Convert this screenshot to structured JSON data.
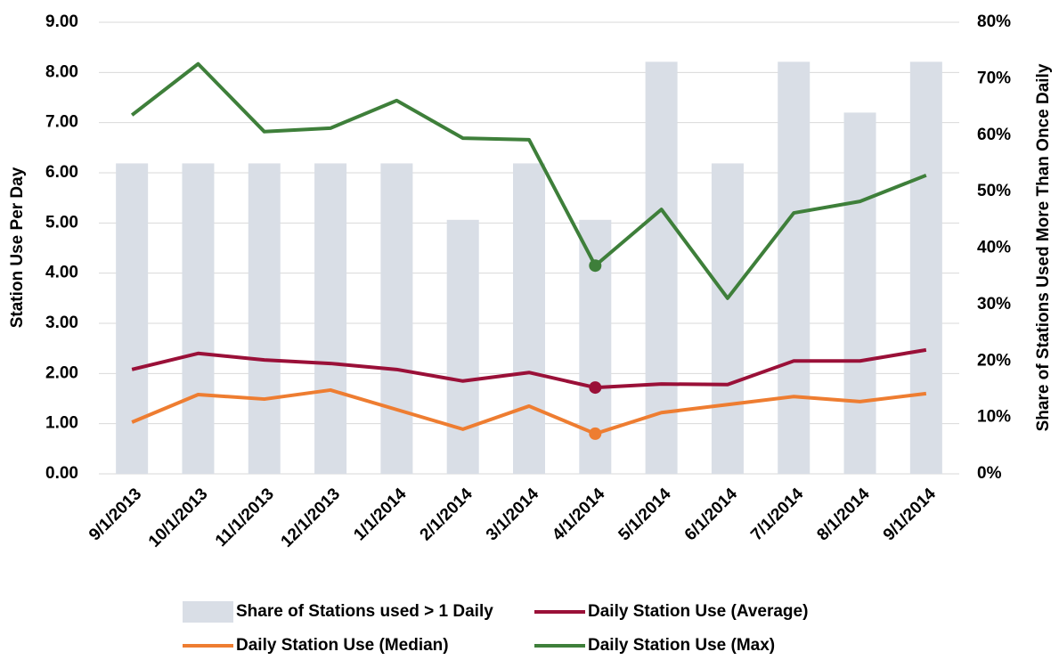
{
  "chart_data": {
    "type": "combo",
    "ylabel": "Station Use Per Day",
    "y2label": "Share of Stations Used More Than Once Daily",
    "categories": [
      "9/1/2013",
      "10/1/2013",
      "11/1/2013",
      "12/1/2013",
      "1/1/2014",
      "2/1/2014",
      "3/1/2014",
      "4/1/2014",
      "5/1/2014",
      "6/1/2014",
      "7/1/2014",
      "8/1/2014",
      "9/1/2014"
    ],
    "ylim": [
      0,
      9
    ],
    "yticks": [
      {
        "value": 0,
        "label": "0.00"
      },
      {
        "value": 1,
        "label": "1.00"
      },
      {
        "value": 2,
        "label": "2.00"
      },
      {
        "value": 3,
        "label": "3.00"
      },
      {
        "value": 4,
        "label": "4.00"
      },
      {
        "value": 5,
        "label": "5.00"
      },
      {
        "value": 6,
        "label": "6.00"
      },
      {
        "value": 7,
        "label": "7.00"
      },
      {
        "value": 8,
        "label": "8.00"
      },
      {
        "value": 9,
        "label": "9.00"
      }
    ],
    "y2lim": [
      0,
      80
    ],
    "y2ticks": [
      {
        "value": 0,
        "label": "0%"
      },
      {
        "value": 10,
        "label": "10%"
      },
      {
        "value": 20,
        "label": "20%"
      },
      {
        "value": 30,
        "label": "30%"
      },
      {
        "value": 40,
        "label": "40%"
      },
      {
        "value": 50,
        "label": "50%"
      },
      {
        "value": 60,
        "label": "60%"
      },
      {
        "value": 70,
        "label": "70%"
      },
      {
        "value": 80,
        "label": "80%"
      }
    ],
    "grid": true,
    "series": [
      {
        "name": "Share of Stations used > 1 Daily",
        "type": "bar",
        "axis": "y2",
        "color": "#d9dee6",
        "values": [
          55,
          55,
          55,
          55,
          55,
          45,
          55,
          45,
          73,
          55,
          73,
          64,
          73
        ]
      },
      {
        "name": "Daily Station Use (Average)",
        "type": "line",
        "color": "#9a1038",
        "highlight": 7,
        "values": [
          2.08,
          2.4,
          2.27,
          2.2,
          2.08,
          1.85,
          2.02,
          1.72,
          1.79,
          1.78,
          2.25,
          2.25,
          2.47
        ]
      },
      {
        "name": "Daily Station Use (Median)",
        "type": "line",
        "color": "#ee7d31",
        "highlight": 7,
        "values": [
          1.03,
          1.58,
          1.49,
          1.67,
          1.28,
          0.89,
          1.35,
          0.8,
          1.22,
          1.38,
          1.54,
          1.44,
          1.6
        ]
      },
      {
        "name": "Daily Station Use (Max)",
        "type": "line",
        "color": "#3e7f3a",
        "highlight": 7,
        "values": [
          7.15,
          8.17,
          6.82,
          6.89,
          7.44,
          6.69,
          6.66,
          4.15,
          5.27,
          3.5,
          5.2,
          5.43,
          5.95
        ]
      }
    ]
  }
}
